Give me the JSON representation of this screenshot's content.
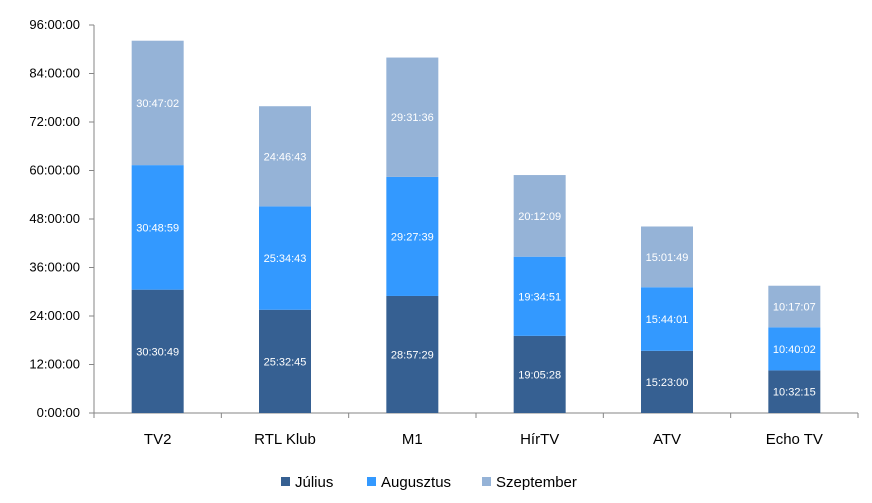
{
  "chart_data": {
    "type": "bar",
    "stacked": true,
    "title": "",
    "xlabel": "",
    "ylabel": "",
    "categories": [
      "TV2",
      "RTL Klub",
      "M1",
      "HírTV",
      "ATV",
      "Echo TV"
    ],
    "series": [
      {
        "name": "Július",
        "color": "#366092",
        "values": [
          "30:30:49",
          "25:32:45",
          "28:57:29",
          "19:05:28",
          "15:23:00",
          "10:32:15"
        ]
      },
      {
        "name": "Augusztus",
        "color": "#3399ff",
        "values": [
          "30:48:59",
          "25:34:43",
          "29:27:39",
          "19:34:51",
          "15:44:01",
          "10:40:02"
        ]
      },
      {
        "name": "Szeptember",
        "color": "#95b3d7",
        "values": [
          "30:47:02",
          "24:46:43",
          "29:31:36",
          "20:12:09",
          "15:01:49",
          "10:17:07"
        ]
      }
    ],
    "yticks": [
      "0:00:00",
      "12:00:00",
      "24:00:00",
      "36:00:00",
      "48:00:00",
      "60:00:00",
      "72:00:00",
      "84:00:00",
      "96:00:00"
    ],
    "ylim": [
      "0:00:00",
      "96:00:00"
    ],
    "grid": false,
    "legend_position": "bottom"
  }
}
